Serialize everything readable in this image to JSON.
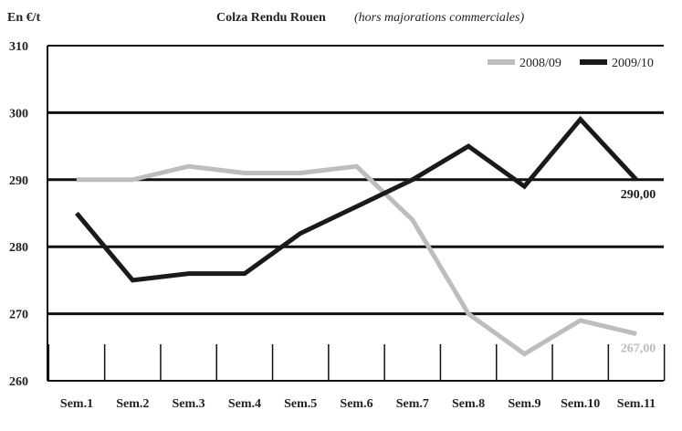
{
  "chart_data": {
    "type": "line",
    "title": "Colza Rendu Rouen",
    "subtitle": "(hors majorations commerciales)",
    "ylabel": "En €/t",
    "xlabel": "",
    "ylim": [
      260,
      310
    ],
    "yticks": [
      260,
      270,
      280,
      290,
      300,
      310
    ],
    "categories": [
      "Sem.1",
      "Sem.2",
      "Sem.3",
      "Sem.4",
      "Sem.5",
      "Sem.6",
      "Sem.7",
      "Sem.8",
      "Sem.9",
      "Sem.10",
      "Sem.11"
    ],
    "grid": true,
    "legend_position": "top-right",
    "series": [
      {
        "name": "2008/09",
        "color": "#bdbdbd",
        "values": [
          290,
          290,
          292,
          291,
          291,
          292,
          284,
          270,
          264,
          269,
          267
        ],
        "end_label": "267,00"
      },
      {
        "name": "2009/10",
        "color": "#1a1a1a",
        "values": [
          285,
          275,
          276,
          276,
          282,
          286,
          290,
          295,
          289,
          299,
          290
        ],
        "end_label": "290,00"
      }
    ]
  }
}
